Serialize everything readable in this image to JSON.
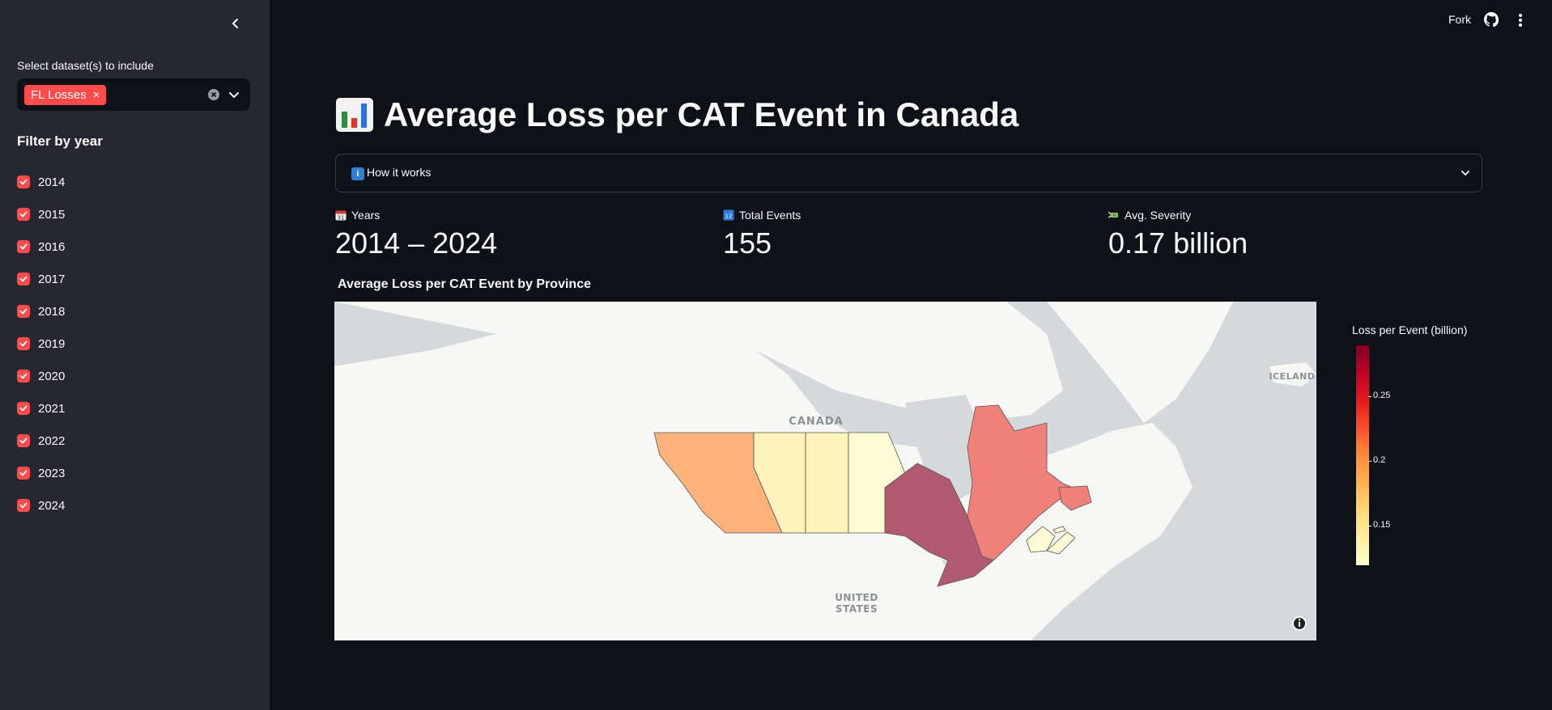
{
  "sidebar": {
    "dataset_label": "Select dataset(s) to include",
    "selected_chip": "FL Losses",
    "chip_remove": "×",
    "filter_title": "Filter by year",
    "years": [
      "2014",
      "2015",
      "2016",
      "2017",
      "2018",
      "2019",
      "2020",
      "2021",
      "2022",
      "2023",
      "2024"
    ]
  },
  "header": {
    "fork_label": "Fork"
  },
  "main": {
    "title": "Average Loss per CAT Event in Canada",
    "expander_label": "How it works",
    "expander_icon_text": "i",
    "metrics": [
      {
        "label": "Years",
        "value": "2014 – 2024",
        "icon": "calendar-icon"
      },
      {
        "label": "Total Events",
        "value": "155",
        "icon": "numbers-icon"
      },
      {
        "label": "Avg. Severity",
        "value": "0.17 billion",
        "icon": "money-with-wings-icon"
      }
    ],
    "chart_title": "Average Loss per CAT Event by Province"
  },
  "map": {
    "labels": {
      "canada": "CANADA",
      "iceland": "ICELAND",
      "us_line1": "UNITED",
      "us_line2": "STATES"
    },
    "colorbar": {
      "title": "Loss per Event (billion)",
      "ticks": [
        "0.25",
        "0.2",
        "0.15"
      ],
      "tick_values": [
        0.25,
        0.2,
        0.15
      ],
      "min": 0.12,
      "max": 0.29
    },
    "colors": {
      "ocean": "#d6d9dc",
      "land": "#f7f7f5",
      "accent": "#ff4b4b"
    }
  },
  "chart_data": {
    "type": "choropleth",
    "title": "Average Loss per CAT Event by Province",
    "colorbar_title": "Loss per Event (billion)",
    "regions": [
      {
        "name": "British Columbia",
        "value": 0.19
      },
      {
        "name": "Alberta",
        "value": 0.14
      },
      {
        "name": "Saskatchewan",
        "value": 0.14
      },
      {
        "name": "Manitoba",
        "value": 0.13
      },
      {
        "name": "Ontario",
        "value": 0.29
      },
      {
        "name": "Quebec",
        "value": 0.23
      },
      {
        "name": "New Brunswick",
        "value": 0.12
      },
      {
        "name": "Nova Scotia",
        "value": 0.12
      },
      {
        "name": "Prince Edward Island",
        "value": 0.12
      }
    ]
  }
}
